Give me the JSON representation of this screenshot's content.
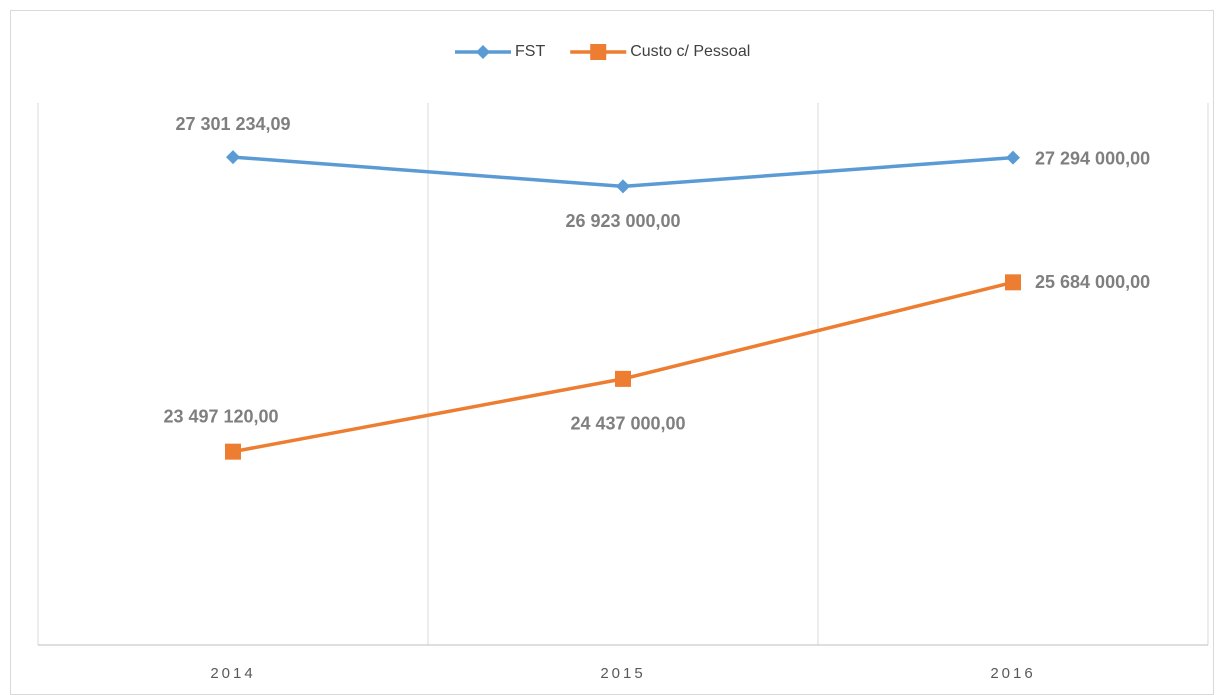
{
  "chart_data": {
    "type": "line",
    "categories": [
      "2014",
      "2015",
      "2016"
    ],
    "series": [
      {
        "name": "FST",
        "color": "#5b9bd5",
        "marker": "diamond",
        "values": [
          27301234.09,
          26923000,
          27294000
        ],
        "value_labels": [
          "27 301 234,09",
          "26 923 000,00",
          "27 294 000,00"
        ]
      },
      {
        "name": "Custo c/ Pessoal",
        "color": "#ed7d31",
        "marker": "square",
        "values": [
          23497120,
          24437000,
          25684000
        ],
        "value_labels": [
          "23 497 120,00",
          "24 437 000,00",
          "25 684 000,00"
        ]
      }
    ],
    "ylim": [
      21000000,
      28000000
    ],
    "legend": "top"
  }
}
